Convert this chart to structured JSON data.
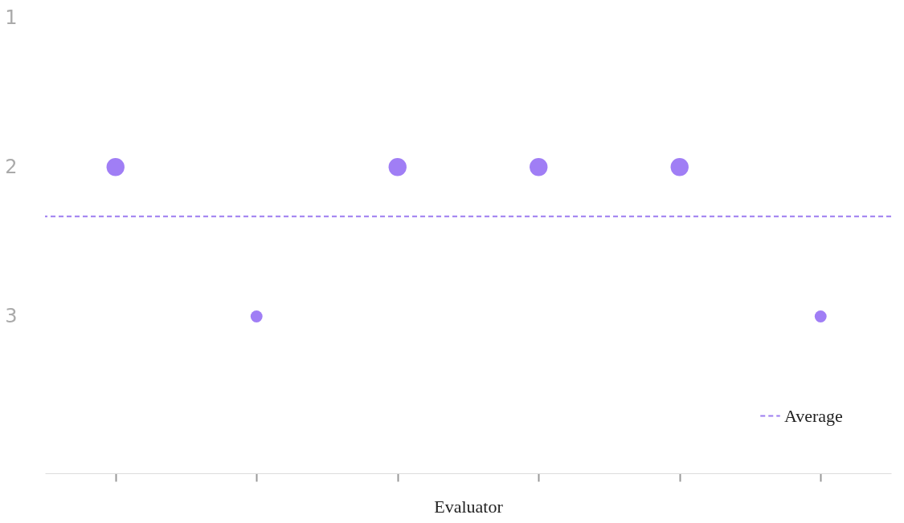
{
  "chart_data": {
    "type": "bubble",
    "xlabel": "Evaluator",
    "categories": [
      null,
      null,
      null,
      null,
      null,
      null
    ],
    "series": [
      {
        "color": "#a07ef5",
        "values": [
          2,
          3,
          2,
          2,
          2,
          3
        ],
        "sizes": [
          1,
          0.44,
          1,
          1,
          1,
          0.44
        ]
      }
    ],
    "ylim": [
      4.05,
      1
    ],
    "yticks": [
      1,
      2,
      3
    ],
    "tick_labels": "y",
    "grid": false,
    "legend": "bottom right",
    "ref_lines": [
      {
        "axis": "y",
        "value": 2.33,
        "label": "Average",
        "color": "#9c7cf0",
        "line_style": "dashed"
      }
    ]
  }
}
